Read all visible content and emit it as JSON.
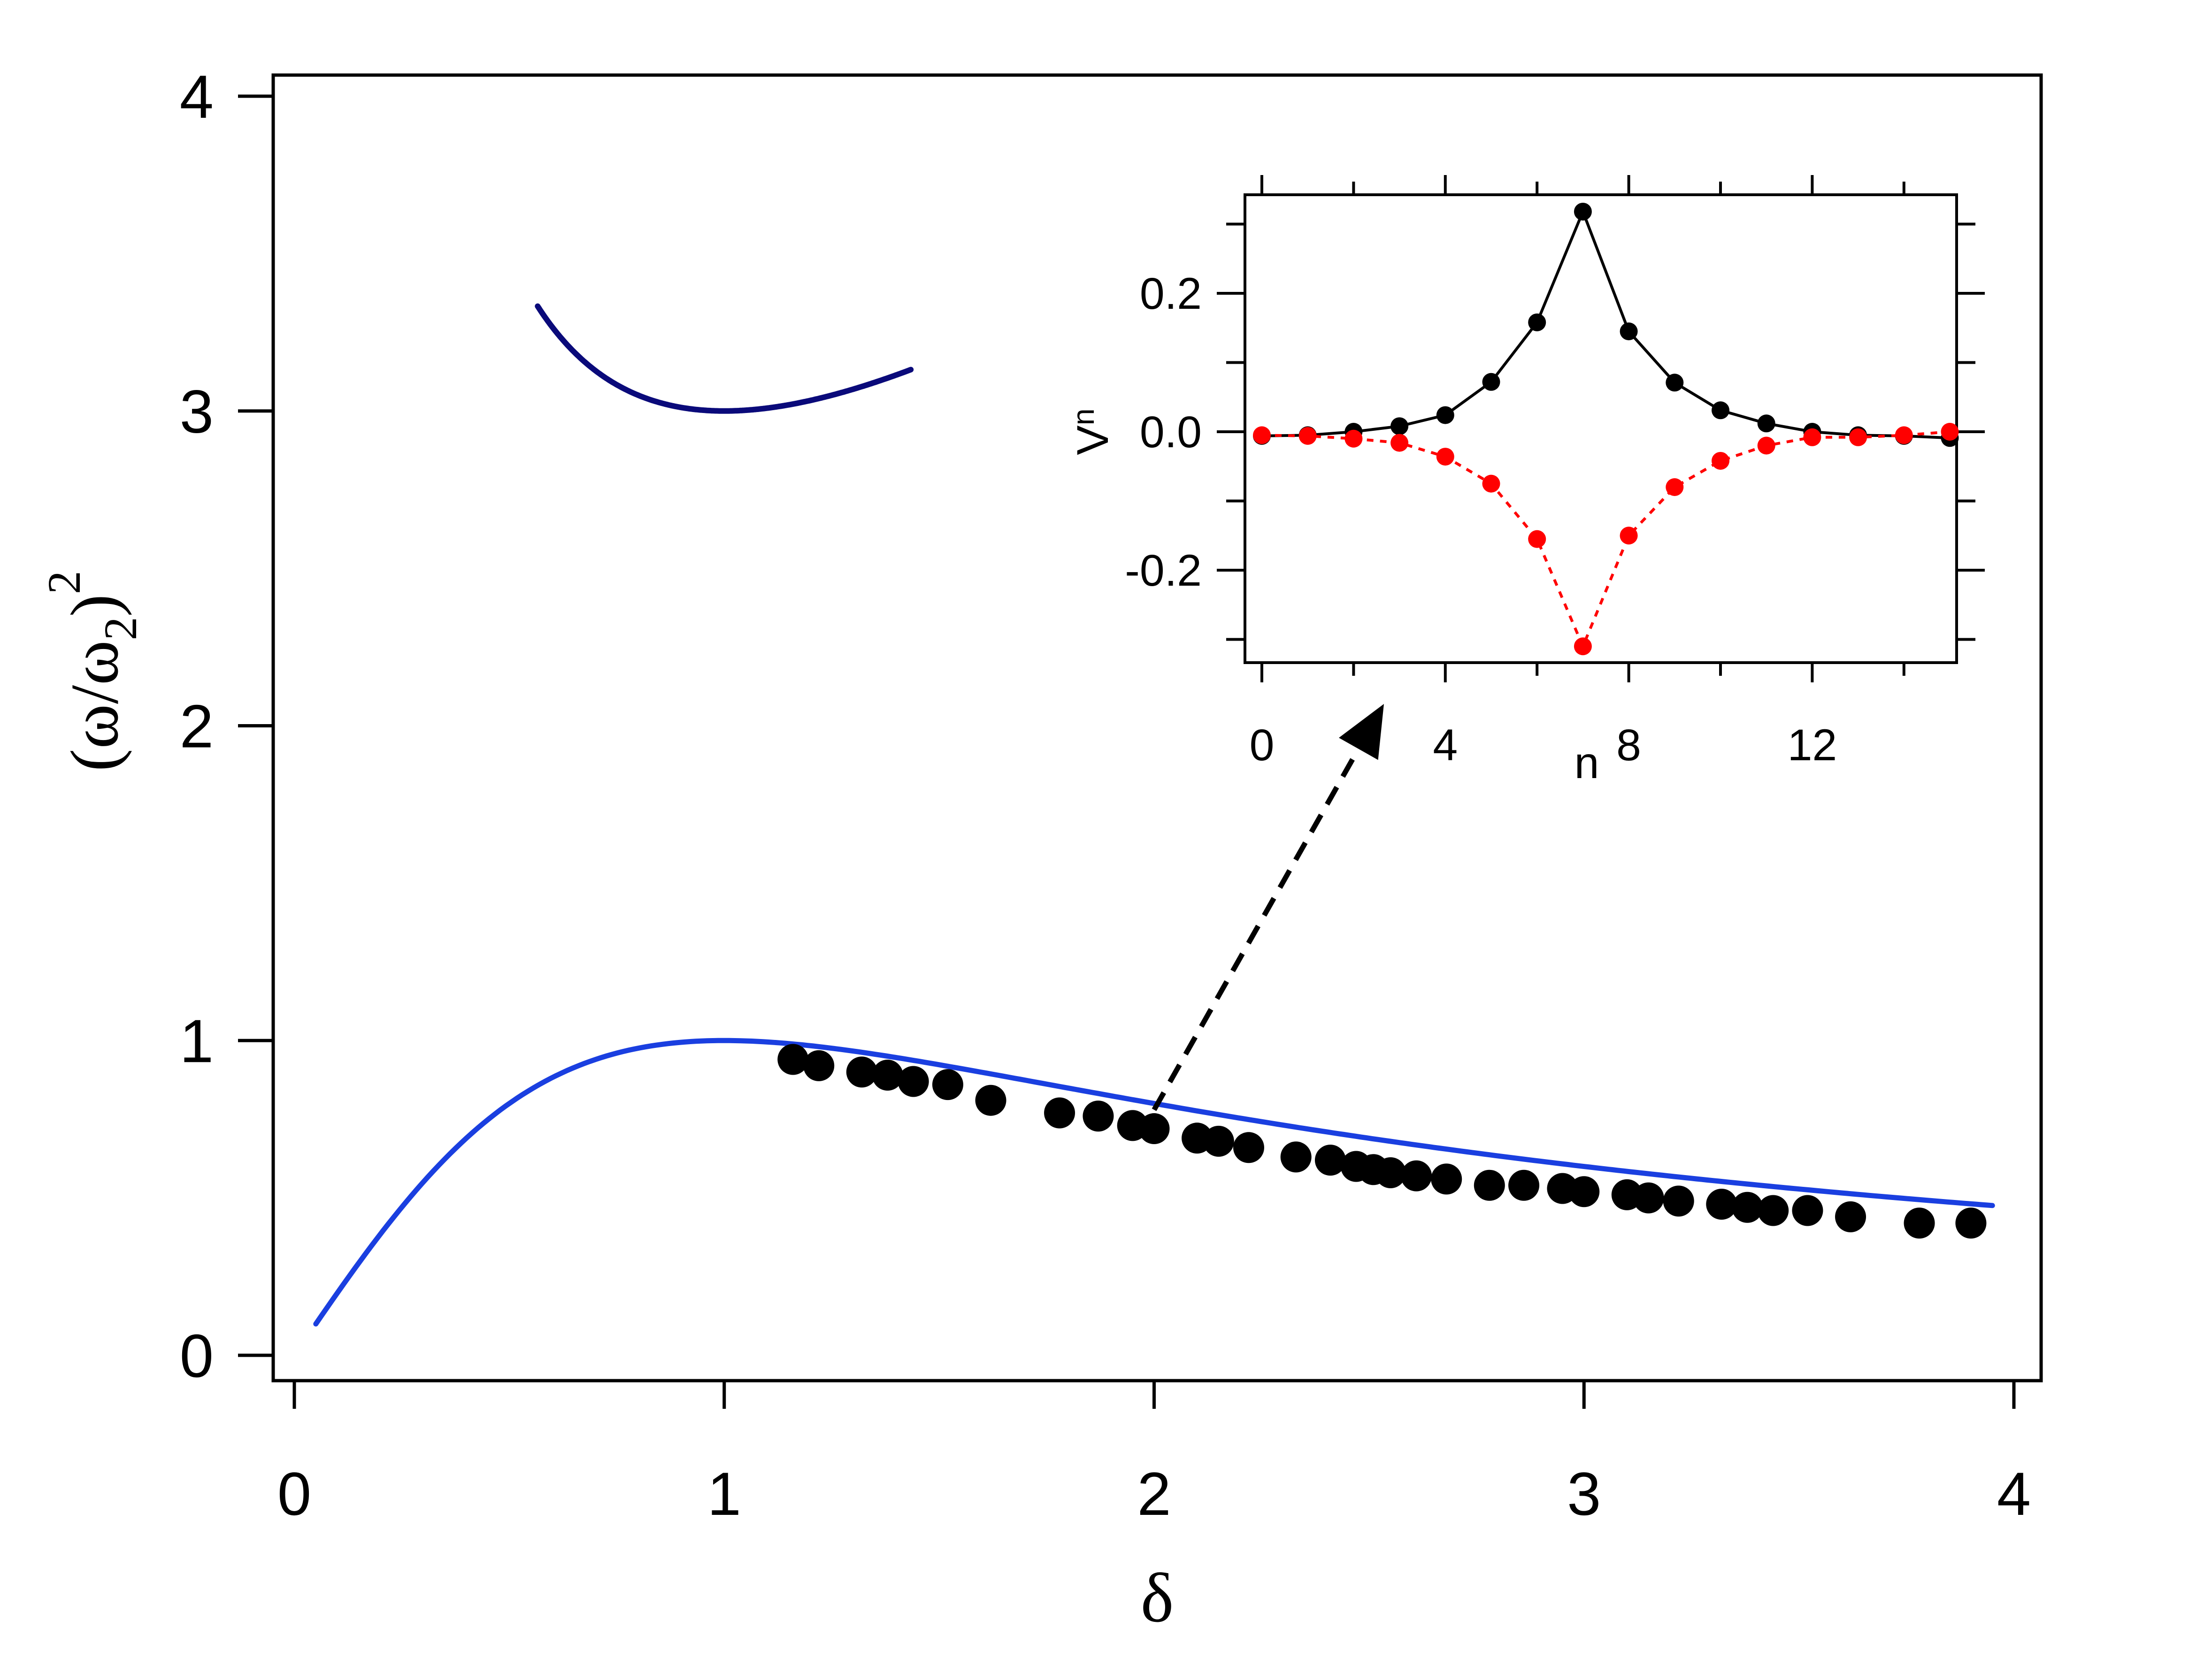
{
  "chart_data": [
    {
      "type": "line",
      "title": "",
      "xlabel": "δ",
      "ylabel": {
        "open": "(ω/ω",
        "sub": "2",
        "close": ")",
        "sup": "2"
      },
      "xlim": [
        -0.05,
        4.05
      ],
      "ylim": [
        -0.07,
        4.1
      ],
      "xticks": [
        0,
        1,
        2,
        3,
        4
      ],
      "yticks": [
        0,
        1,
        2,
        3,
        4
      ],
      "grid": false,
      "legend": "none",
      "curves": [
        {
          "style": "solid",
          "color": "#1a3fe0",
          "expr": "2*d/(1+d*d)",
          "domain": [
            0.05,
            3.95
          ]
        },
        {
          "style": "solid",
          "color": "#0a0a7a",
          "expr": "1 + 2*(d*d+1)/(2*d)",
          "domain": [
            0.566,
            1.434
          ]
        }
      ],
      "series": [
        {
          "style": "markers",
          "color": "#000000",
          "x": [
            1.16,
            1.22,
            1.32,
            1.38,
            1.44,
            1.52,
            1.62,
            1.78,
            1.87,
            1.95,
            2.0,
            2.1,
            2.15,
            2.22,
            2.33,
            2.41,
            2.47,
            2.51,
            2.55,
            2.61,
            2.68,
            2.78,
            2.86,
            2.95,
            3.0,
            3.1,
            3.15,
            3.22,
            3.32,
            3.38,
            3.44,
            3.52,
            3.62,
            3.78,
            3.9
          ],
          "y": [
            0.94,
            0.92,
            0.9,
            0.89,
            0.87,
            0.86,
            0.81,
            0.77,
            0.76,
            0.73,
            0.72,
            0.69,
            0.68,
            0.66,
            0.63,
            0.62,
            0.6,
            0.59,
            0.58,
            0.57,
            0.56,
            0.54,
            0.54,
            0.53,
            0.52,
            0.51,
            0.5,
            0.49,
            0.48,
            0.47,
            0.46,
            0.46,
            0.44,
            0.42,
            0.42
          ]
        }
      ],
      "annotations": [
        {
          "type": "arrow",
          "style": "dashed",
          "color": "#000000",
          "from": [
            2.0,
            0.78
          ],
          "to": [
            2.5,
            2.1
          ]
        }
      ]
    },
    {
      "type": "line",
      "title": "",
      "xlabel": "n",
      "ylabel": {
        "main": "V",
        "sub": "n"
      },
      "xlim": [
        -0.3,
        15.3
      ],
      "ylim": [
        -0.33,
        0.34
      ],
      "xticks": [
        0,
        4,
        8,
        12
      ],
      "yticks": [
        -0.2,
        0.0,
        0.2
      ],
      "ytick_labels": [
        "-0.2",
        "0.0",
        "0.2"
      ],
      "grid": false,
      "legend": "none",
      "series": [
        {
          "style": "solid-markers",
          "color": "#000000",
          "x": [
            0,
            1,
            2,
            3,
            4,
            5,
            6,
            7,
            8,
            9,
            10,
            11,
            12,
            13,
            14,
            15
          ],
          "y": [
            -0.006,
            -0.005,
            0.0,
            0.008,
            0.024,
            0.072,
            0.158,
            0.318,
            0.145,
            0.071,
            0.031,
            0.012,
            0.0,
            -0.005,
            -0.006,
            -0.009
          ]
        },
        {
          "style": "dotted-markers",
          "color": "#ff0000",
          "x": [
            0,
            1,
            2,
            3,
            4,
            5,
            6,
            7,
            8,
            9,
            10,
            11,
            12,
            13,
            14,
            15
          ],
          "y": [
            -0.005,
            -0.006,
            -0.01,
            -0.016,
            -0.036,
            -0.075,
            -0.155,
            -0.31,
            -0.15,
            -0.08,
            -0.042,
            -0.02,
            -0.008,
            -0.008,
            -0.005,
            0.0
          ]
        }
      ]
    }
  ]
}
